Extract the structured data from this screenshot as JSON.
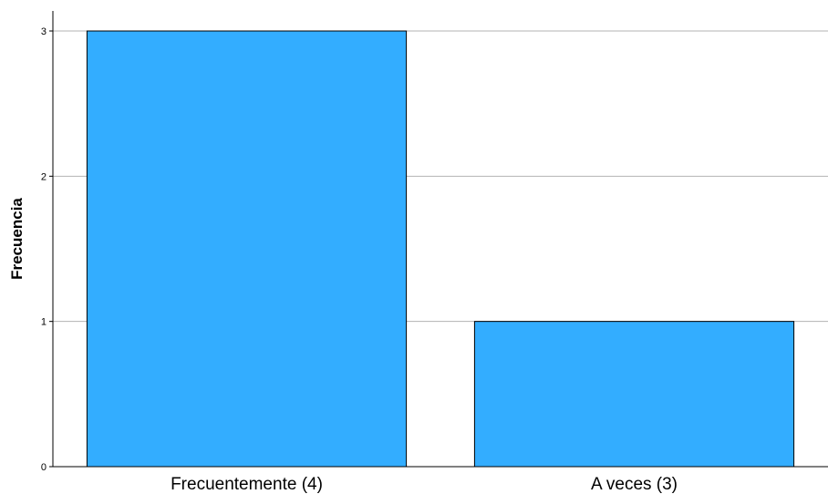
{
  "chart_data": {
    "type": "bar",
    "categories": [
      "Frecuentemente (4)",
      "A veces (3)"
    ],
    "values": [
      3,
      1
    ],
    "title": "",
    "xlabel": "",
    "ylabel": "Frecuencia",
    "ylim": [
      0,
      3
    ],
    "yticks": [
      "0",
      "1",
      "2",
      "3"
    ],
    "grid": true,
    "legend": "none",
    "bar_color": "#33adff",
    "bar_border_color": "#000000",
    "grid_color": "#b3b3b3"
  }
}
